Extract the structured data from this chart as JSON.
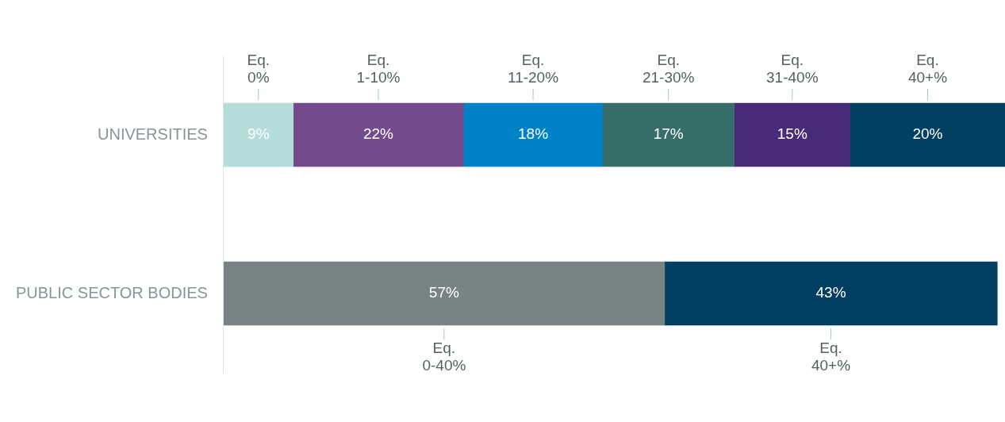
{
  "chart_data": {
    "type": "bar",
    "orientation": "horizontal",
    "stacked": true,
    "legend": false,
    "grid": false,
    "categories": [
      "UNIVERSITIES",
      "PUBLIC SECTOR BODIES"
    ],
    "series": [
      {
        "name": "Eq. 0%",
        "color": "#b3dcdb",
        "values": [
          9,
          null
        ],
        "value_labels": [
          "9%",
          null
        ]
      },
      {
        "name": "Eq. 1-10%",
        "color": "#734b8c",
        "values": [
          22,
          null
        ],
        "value_labels": [
          "22%",
          null
        ]
      },
      {
        "name": "Eq. 11-20%",
        "color": "#0082c9",
        "values": [
          18,
          null
        ],
        "value_labels": [
          "18%",
          null
        ]
      },
      {
        "name": "Eq. 21-30%",
        "color": "#376e6a",
        "values": [
          17,
          null
        ],
        "value_labels": [
          "17%",
          null
        ]
      },
      {
        "name": "Eq. 31-40%",
        "color": "#472b78",
        "values": [
          15,
          null
        ],
        "value_labels": [
          "15%",
          null
        ]
      },
      {
        "name": "Eq. 0-40%",
        "color": "#788385",
        "values": [
          null,
          57
        ],
        "value_labels": [
          null,
          "57%"
        ]
      },
      {
        "name": "Eq. 40+%",
        "color": "#003f5f",
        "values": [
          20,
          43
        ],
        "value_labels": [
          "20%",
          "43%"
        ]
      }
    ]
  }
}
